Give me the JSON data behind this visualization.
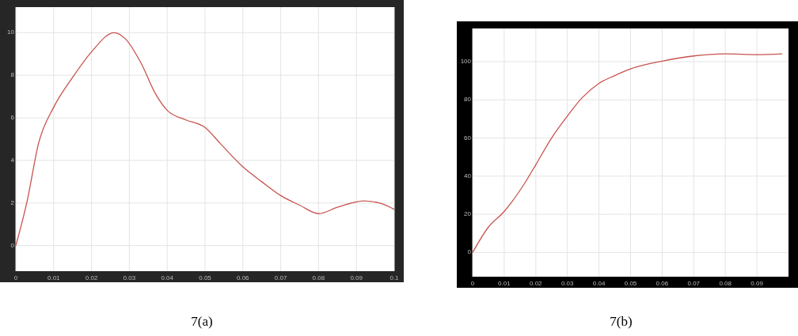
{
  "chart_data": [
    {
      "type": "line",
      "title": "7(a)",
      "x": [
        0,
        0.003,
        0.006,
        0.01,
        0.015,
        0.02,
        0.026,
        0.029,
        0.033,
        0.037,
        0.04,
        0.045,
        0.05,
        0.054,
        0.06,
        0.065,
        0.07,
        0.075,
        0.08,
        0.085,
        0.092,
        0.097,
        0.1
      ],
      "series": [
        {
          "color": "#c8534f",
          "values": [
            0,
            2.1,
            4.8,
            6.5,
            7.9,
            9.1,
            10,
            9.7,
            8.6,
            7.1,
            6.35,
            5.9,
            5.55,
            4.8,
            3.7,
            3,
            2.35,
            1.9,
            1.5,
            1.8,
            2.1,
            1.95,
            1.7
          ]
        }
      ],
      "xlim": [
        0,
        0.1
      ],
      "xticks": [
        0,
        0.01,
        0.02,
        0.03,
        0.04,
        0.05,
        0.06,
        0.07,
        0.08,
        0.09,
        0.1
      ],
      "ylim": [
        -1.2,
        11.2
      ],
      "yticks": [
        0,
        2,
        4,
        6,
        8,
        10
      ],
      "grid": true
    },
    {
      "type": "line",
      "title": "7(b)",
      "x": [
        0,
        0.005,
        0.01,
        0.0166,
        0.02,
        0.025,
        0.03,
        0.0346,
        0.04,
        0.045,
        0.05,
        0.06,
        0.07,
        0.08,
        0.09,
        0.098
      ],
      "series": [
        {
          "color": "#c8534f",
          "values": [
            0,
            13.3,
            21.5,
            36.6,
            46,
            60,
            71.5,
            81,
            88.6,
            92.7,
            96.2,
            100.3,
            103,
            104.1,
            103.7,
            104.1
          ]
        }
      ],
      "xlim": [
        0,
        0.1
      ],
      "xticks": [
        0,
        0.01,
        0.02,
        0.03,
        0.04,
        0.05,
        0.06,
        0.07,
        0.08,
        0.09
      ],
      "ylim": [
        -12.7,
        117.4
      ],
      "yticks": [
        0,
        20,
        40,
        60,
        80,
        100
      ],
      "grid": true
    }
  ]
}
